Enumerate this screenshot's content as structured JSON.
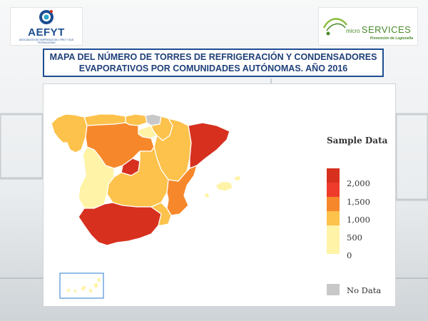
{
  "header": {
    "logo_left": {
      "name": "AEFYT",
      "subtitle": "ASOCIACIÓN DE EMPRESAS DEL FRÍO Y SUS TECNOLOGÍAS"
    },
    "logo_right": {
      "name_small": "micro",
      "name_large": "SERVICES",
      "tagline": "Prevención de Legionella"
    },
    "title_line1": "MAPA DEL NÚMERO DE TORRES DE REFRIGERACIÓN Y CONDENSADORES",
    "title_line2": "EVAPORATIVOS POR COMUNIDADES AUTÓNOMAS. AÑO 2016"
  },
  "legend": {
    "title": "Sample Data",
    "items": [
      {
        "label": "2,000",
        "color": "#d7301f"
      },
      {
        "label": "1,500",
        "color": "#ef3b2c"
      },
      {
        "label": "1,000",
        "color": "#f6882b"
      },
      {
        "label": "500",
        "color": "#fdc24b"
      },
      {
        "label": "0",
        "color": "#fff3a8"
      }
    ],
    "no_data": {
      "label": "No Data",
      "color": "#c8c8c8"
    }
  },
  "colors": {
    "title_border": "#1f4e92",
    "title_text": "#1f3f7a"
  },
  "map_regions": [
    {
      "name": "Galicia",
      "color": "#fdc24b"
    },
    {
      "name": "Asturias",
      "color": "#fdc24b"
    },
    {
      "name": "Cantabria",
      "color": "#fdc24b"
    },
    {
      "name": "País Vasco",
      "color": "#c8c8c8"
    },
    {
      "name": "Navarra",
      "color": "#fdc24b"
    },
    {
      "name": "La Rioja",
      "color": "#fff3a8"
    },
    {
      "name": "Aragón",
      "color": "#fdc24b"
    },
    {
      "name": "Cataluña",
      "color": "#d7301f"
    },
    {
      "name": "Castilla y León",
      "color": "#f6882b"
    },
    {
      "name": "Comunidad de Madrid",
      "color": "#d7301f"
    },
    {
      "name": "Castilla-La Mancha",
      "color": "#fdc24b"
    },
    {
      "name": "Comunidad Valenciana",
      "color": "#f6882b"
    },
    {
      "name": "Islas Baleares",
      "color": "#fff3a8"
    },
    {
      "name": "Extremadura",
      "color": "#fff3a8"
    },
    {
      "name": "Andalucía",
      "color": "#d7301f"
    },
    {
      "name": "Región de Murcia",
      "color": "#fdc24b"
    },
    {
      "name": "Islas Canarias",
      "color": "#fff3a8"
    }
  ]
}
